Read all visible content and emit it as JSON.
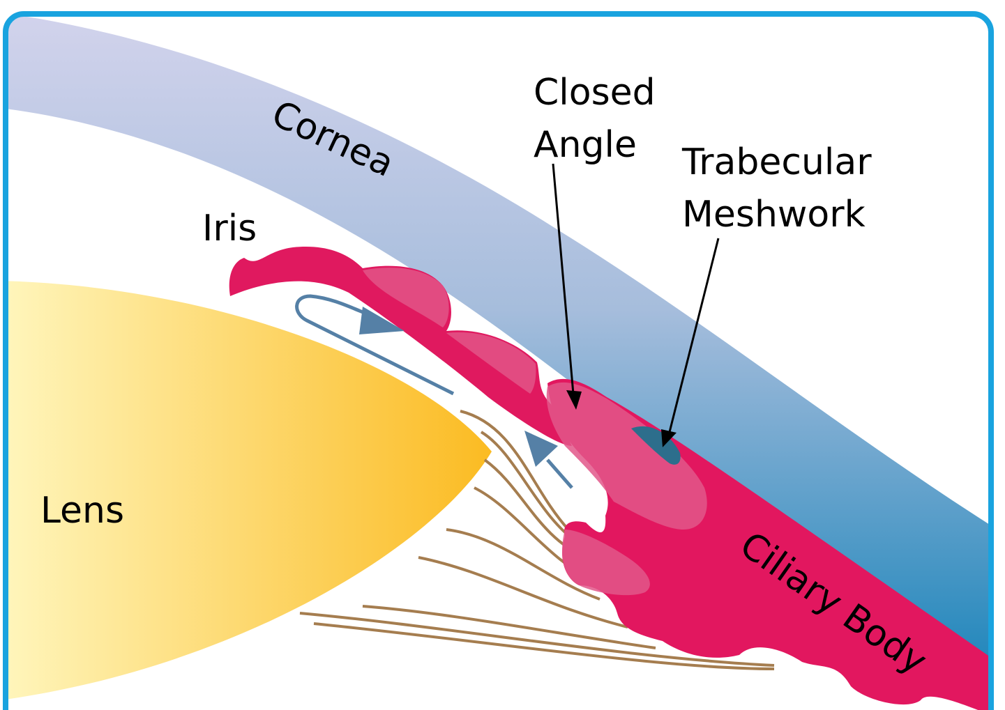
{
  "labels": {
    "cornea": "Cornea",
    "iris": "Iris",
    "closed_angle": [
      "Closed",
      "Angle"
    ],
    "trabecular_meshwork": [
      "Trabecular",
      "Meshwork"
    ],
    "lens": "Lens",
    "ciliary_body": "Ciliary Body"
  }
}
